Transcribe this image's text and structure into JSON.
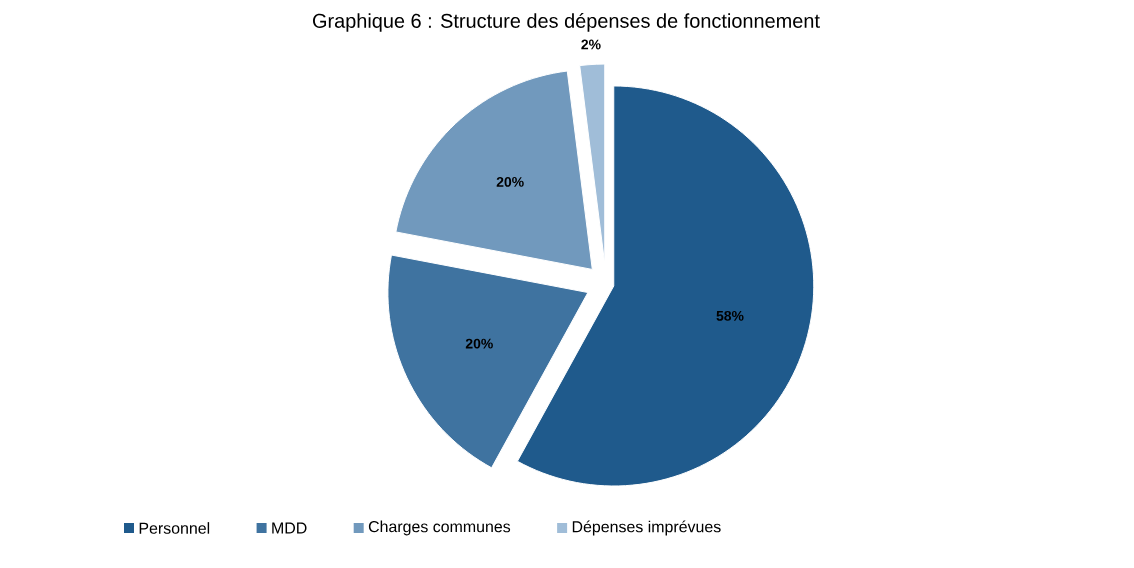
{
  "chart_data": {
    "type": "pie",
    "title": "Graphique 6 : Structure des dépenses de fonctionnement",
    "categories": [
      "Personnel",
      "MDD",
      "Charges communes",
      "Dépenses imprévues"
    ],
    "values": [
      58,
      20,
      20,
      2
    ],
    "colors": [
      "#1f5a8c",
      "#3f73a0",
      "#7199bd",
      "#a0bdd8"
    ],
    "value_labels": [
      "58%",
      "20%",
      "20%",
      "2%"
    ],
    "legend": "bottom"
  }
}
